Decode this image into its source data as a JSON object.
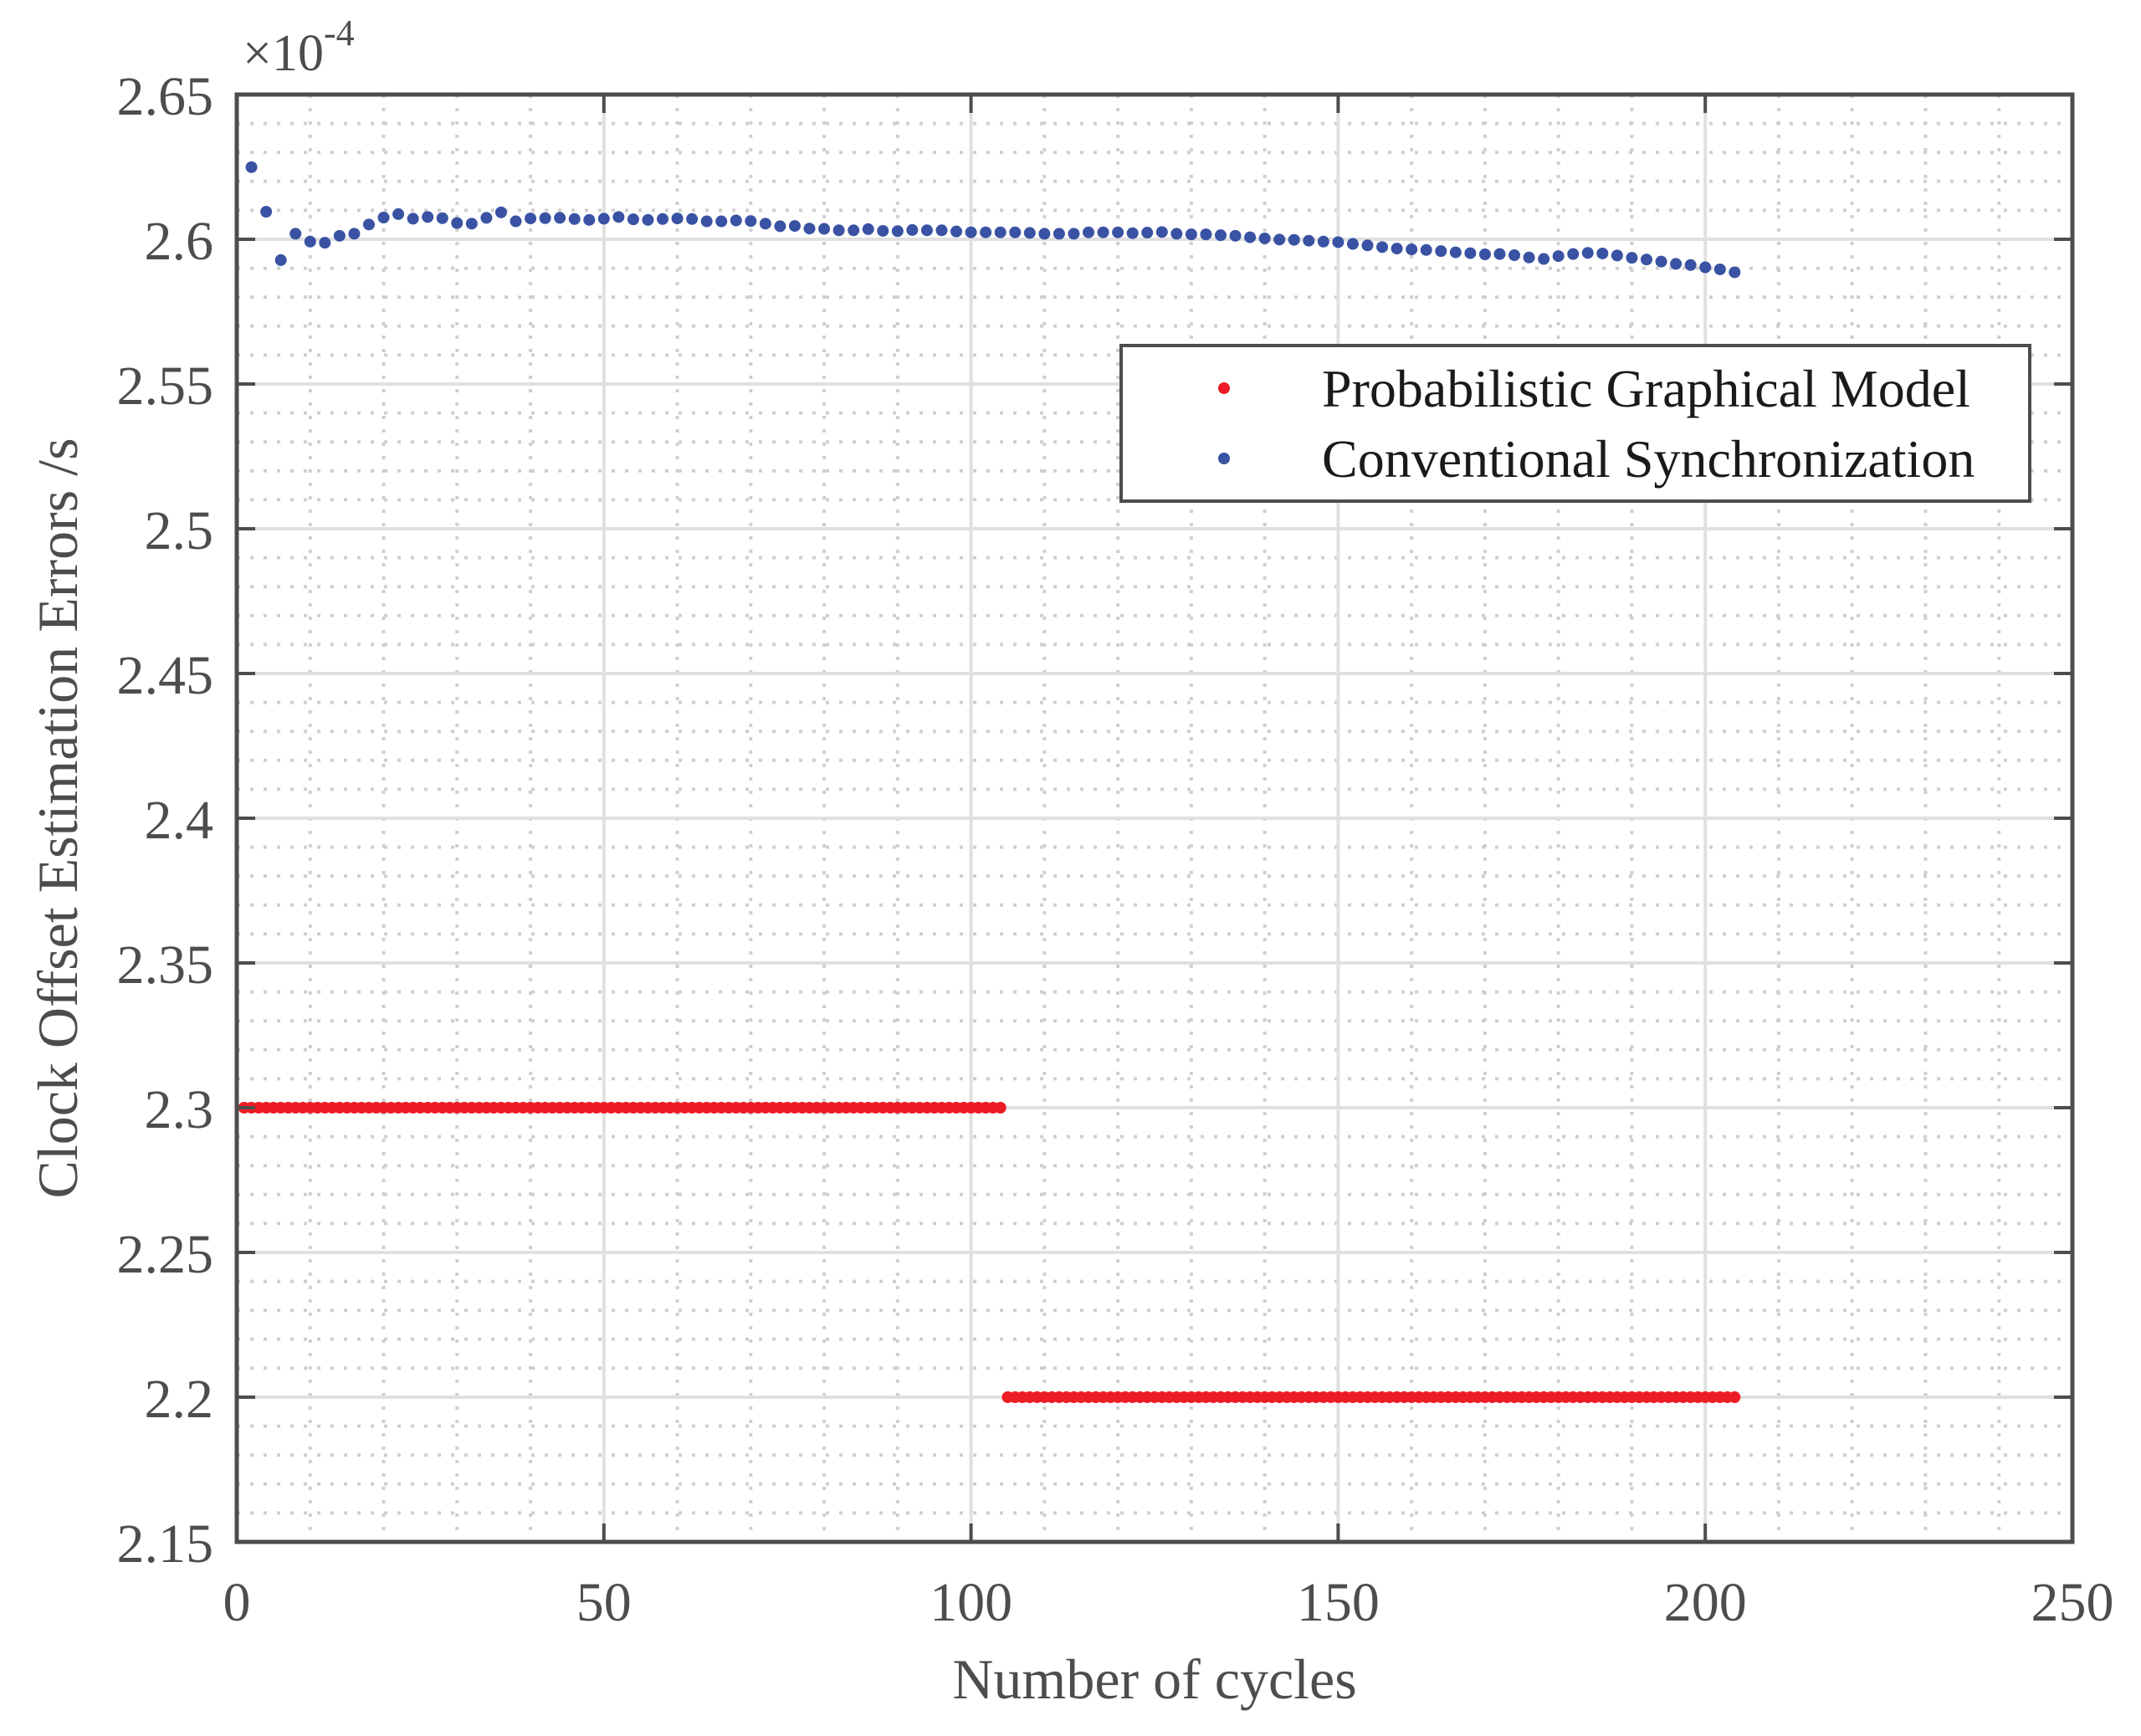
{
  "chart_data": {
    "type": "scatter",
    "title": "",
    "xlabel": "Number of cycles",
    "ylabel": "Clock Offset Estimation Errors /s",
    "y_exponent_label": "×10",
    "y_exponent_power": "-4",
    "xlim": [
      0,
      250
    ],
    "ylim": [
      2.15,
      2.65
    ],
    "x_ticks": [
      0,
      50,
      100,
      150,
      200,
      250
    ],
    "x_tick_labels": [
      "0",
      "50",
      "100",
      "150",
      "200",
      "250"
    ],
    "y_ticks": [
      2.15,
      2.2,
      2.25,
      2.3,
      2.35,
      2.4,
      2.45,
      2.5,
      2.55,
      2.6,
      2.65
    ],
    "y_tick_labels": [
      "2.15",
      "2.2",
      "2.25",
      "2.3",
      "2.35",
      "2.4",
      "2.45",
      "2.5",
      "2.55",
      "2.6",
      "2.65"
    ],
    "x_minor_step": 10,
    "y_minor_step": 0.01,
    "grid": "major and minor",
    "legend_position": "upper right (inside)",
    "series": [
      {
        "name": "Probabilistic Graphical Model",
        "color": "#ED1C24",
        "marker": "dot",
        "segments": [
          {
            "x_start": 1,
            "x_end": 104,
            "x_step": 1,
            "y": 2.3
          },
          {
            "x_start": 105,
            "x_end": 204,
            "x_step": 1,
            "y": 2.2
          }
        ]
      },
      {
        "name": "Conventional Synchronization",
        "color": "#3A52A3",
        "marker": "dot",
        "x": [
          2,
          4,
          6,
          8,
          10,
          12,
          14,
          16,
          18,
          20,
          22,
          24,
          26,
          28,
          30,
          32,
          34,
          36,
          38,
          40,
          42,
          44,
          46,
          48,
          50,
          52,
          54,
          56,
          58,
          60,
          62,
          64,
          66,
          68,
          70,
          72,
          74,
          76,
          78,
          80,
          82,
          84,
          86,
          88,
          90,
          92,
          94,
          96,
          98,
          100,
          102,
          104,
          106,
          108,
          110,
          112,
          114,
          116,
          118,
          120,
          122,
          124,
          126,
          128,
          130,
          132,
          134,
          136,
          138,
          140,
          142,
          144,
          146,
          148,
          150,
          152,
          154,
          156,
          158,
          160,
          162,
          164,
          166,
          168,
          170,
          172,
          174,
          176,
          178,
          180,
          182,
          184,
          186,
          188,
          190,
          192,
          194,
          196,
          198,
          200,
          202,
          204
        ],
        "y": [
          2.6249,
          2.6095,
          2.5928,
          2.6019,
          2.5992,
          2.5988,
          2.6012,
          2.6019,
          2.6051,
          2.6075,
          2.6087,
          2.6071,
          2.6077,
          2.6073,
          2.6056,
          2.6054,
          2.6074,
          2.6093,
          2.6062,
          2.6072,
          2.6073,
          2.6074,
          2.607,
          2.6067,
          2.6071,
          2.6077,
          2.6069,
          2.6067,
          2.607,
          2.6072,
          2.607,
          2.6062,
          2.6062,
          2.6065,
          2.6063,
          2.6054,
          2.6045,
          2.6046,
          2.6037,
          2.6036,
          2.6031,
          2.6031,
          2.6035,
          2.6029,
          2.6028,
          2.6032,
          2.6031,
          2.6031,
          2.6027,
          2.6024,
          2.6024,
          2.6024,
          2.6024,
          2.6022,
          2.6019,
          2.6019,
          2.6019,
          2.6024,
          2.6024,
          2.6024,
          2.6021,
          2.6023,
          2.6025,
          2.6019,
          2.6017,
          2.6017,
          2.6014,
          2.6012,
          2.6007,
          2.6003,
          2.5999,
          2.5998,
          2.5995,
          2.5992,
          2.599,
          2.5984,
          2.5979,
          2.5973,
          2.5968,
          2.5965,
          2.5963,
          2.5959,
          2.5955,
          2.5952,
          2.5948,
          2.5949,
          2.5945,
          2.5937,
          2.5932,
          2.5942,
          2.5949,
          2.5953,
          2.5951,
          2.5944,
          2.5936,
          2.593,
          2.5923,
          2.5915,
          2.5911,
          2.5903,
          2.5896,
          2.5886
        ]
      }
    ]
  },
  "style": {
    "axis_color": "#4D4D4D",
    "grid_major_color": "#E0E0E0",
    "grid_minor_color": "#CFCFCF",
    "legend_border_color": "#4D4D4D"
  }
}
